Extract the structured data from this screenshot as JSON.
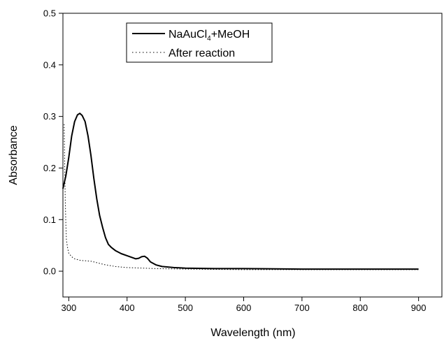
{
  "chart_data": {
    "type": "line",
    "title": "",
    "xlabel": "Wavelength (nm)",
    "ylabel": "Absorbance",
    "xlim": [
      290,
      940
    ],
    "ylim": [
      -0.05,
      0.5
    ],
    "xticks": [
      300,
      400,
      500,
      600,
      700,
      800,
      900
    ],
    "xtick_labels": [
      "300",
      "400",
      "500",
      "600",
      "700",
      "800",
      "900"
    ],
    "yticks": [
      0.0,
      0.1,
      0.2,
      0.3,
      0.4,
      0.5
    ],
    "ytick_labels": [
      "0.0",
      "0.1",
      "0.2",
      "0.3",
      "0.4",
      "0.5"
    ],
    "grid": false,
    "legend_position": "top-center",
    "series": [
      {
        "name": "NaAuCl4+MeOH",
        "name_main": "NaAuCl",
        "name_sub": "4",
        "name_rest": "+MeOH",
        "style": "solid",
        "color": "#000000",
        "points": [
          [
            290,
            0.16
          ],
          [
            295,
            0.185
          ],
          [
            300,
            0.22
          ],
          [
            305,
            0.262
          ],
          [
            310,
            0.29
          ],
          [
            315,
            0.303
          ],
          [
            319,
            0.306
          ],
          [
            323,
            0.302
          ],
          [
            328,
            0.29
          ],
          [
            333,
            0.262
          ],
          [
            338,
            0.225
          ],
          [
            343,
            0.18
          ],
          [
            348,
            0.14
          ],
          [
            353,
            0.108
          ],
          [
            358,
            0.085
          ],
          [
            363,
            0.065
          ],
          [
            368,
            0.052
          ],
          [
            373,
            0.046
          ],
          [
            380,
            0.04
          ],
          [
            390,
            0.034
          ],
          [
            400,
            0.03
          ],
          [
            410,
            0.026
          ],
          [
            415,
            0.024
          ],
          [
            420,
            0.025
          ],
          [
            425,
            0.028
          ],
          [
            430,
            0.029
          ],
          [
            435,
            0.025
          ],
          [
            440,
            0.018
          ],
          [
            450,
            0.012
          ],
          [
            460,
            0.009
          ],
          [
            480,
            0.007
          ],
          [
            500,
            0.006
          ],
          [
            550,
            0.005
          ],
          [
            600,
            0.005
          ],
          [
            700,
            0.004
          ],
          [
            800,
            0.004
          ],
          [
            850,
            0.004
          ],
          [
            900,
            0.004
          ]
        ]
      },
      {
        "name": "After reaction",
        "style": "dotted",
        "color": "#000000",
        "points": [
          [
            292,
            0.285
          ],
          [
            293,
            0.21
          ],
          [
            294,
            0.14
          ],
          [
            295,
            0.09
          ],
          [
            296,
            0.06
          ],
          [
            298,
            0.045
          ],
          [
            300,
            0.035
          ],
          [
            305,
            0.028
          ],
          [
            310,
            0.024
          ],
          [
            320,
            0.021
          ],
          [
            330,
            0.02
          ],
          [
            340,
            0.019
          ],
          [
            350,
            0.016
          ],
          [
            360,
            0.013
          ],
          [
            380,
            0.009
          ],
          [
            400,
            0.007
          ],
          [
            450,
            0.005
          ],
          [
            500,
            0.004
          ],
          [
            600,
            0.003
          ],
          [
            700,
            0.003
          ],
          [
            800,
            0.003
          ],
          [
            900,
            0.003
          ]
        ]
      }
    ]
  }
}
